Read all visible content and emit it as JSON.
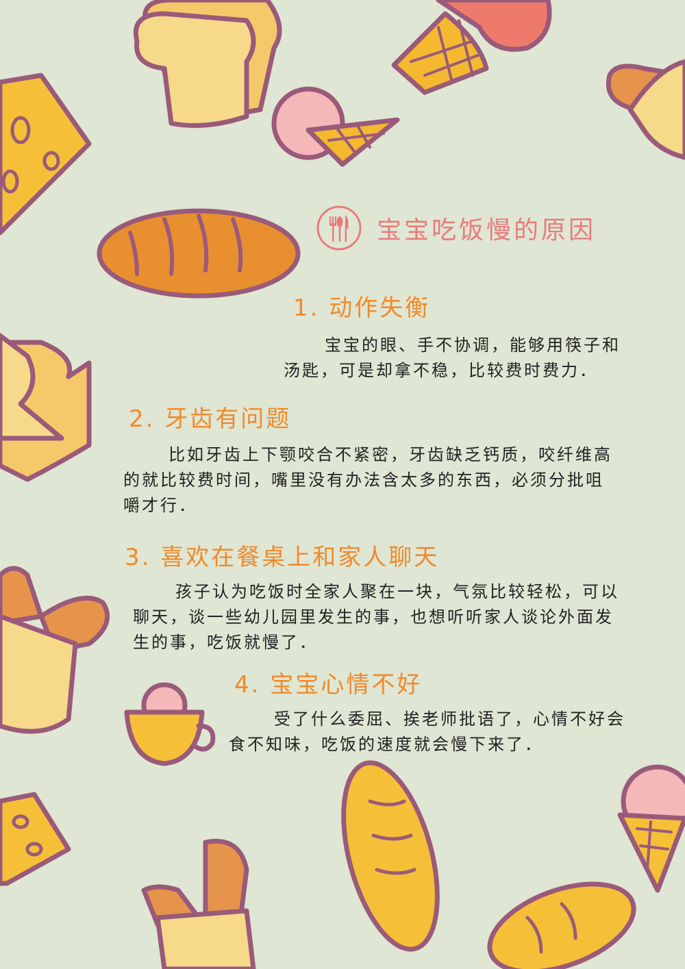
{
  "title": "宝宝吃饭慢的原因",
  "sections": [
    {
      "heading": "1. 动作失衡",
      "lines": [
        "宝宝的眼、手不协调，能够用筷子和",
        "汤匙，可是却拿不稳，比较费时费力．"
      ]
    },
    {
      "heading": "2. 牙齿有问题",
      "lines": [
        "比如牙齿上下颚咬合不紧密，牙齿缺乏钙质，咬纤维高",
        "的就比较费时间，嘴里没有办法含太多的东西，必须分批咀",
        "嚼才行．"
      ]
    },
    {
      "heading": "3. 喜欢在餐桌上和家人聊天",
      "lines": [
        "孩子认为吃饭时全家人聚在一块，气氛比较轻松，可以",
        "聊天，谈一些幼儿园里发生的事，也想听听家人谈论外面发",
        "生的事，吃饭就慢了．"
      ]
    },
    {
      "heading": "4. 宝宝心情不好",
      "lines": [
        "受了什么委屈、挨老师批语了，心情不好会",
        "食不知味，吃饭的速度就会慢下来了．"
      ]
    }
  ],
  "colors": {
    "background": "#dfe6d3",
    "title": "#e87b7b",
    "heading": "#f08a2c",
    "outline": "#9a5a7a"
  },
  "icons": [
    "cutlery-circle-icon"
  ]
}
